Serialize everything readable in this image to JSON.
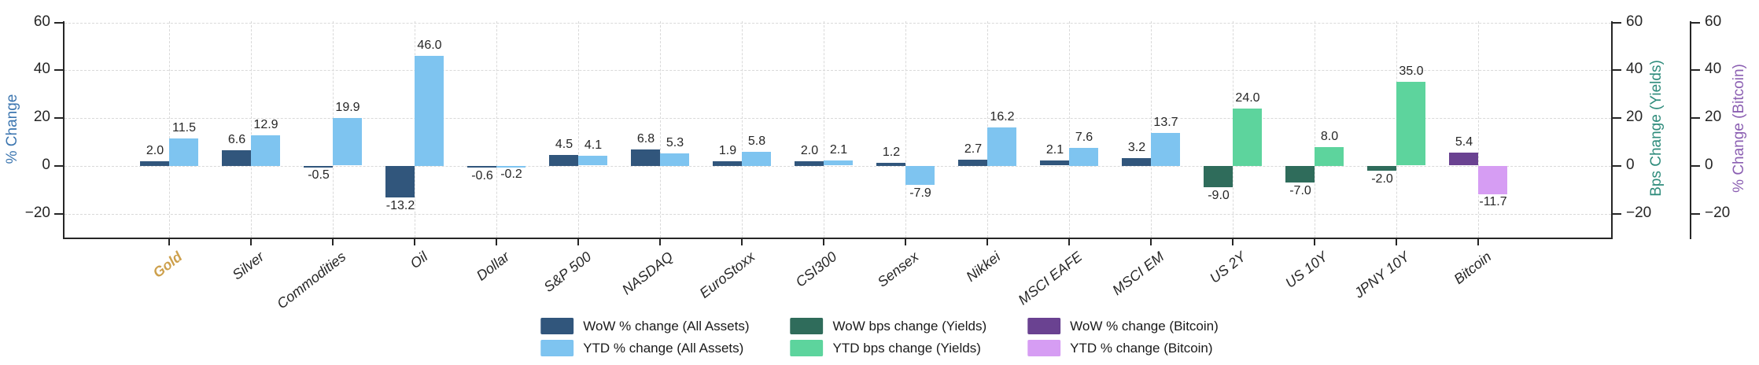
{
  "chart_data": {
    "type": "bar",
    "title": "",
    "categories": [
      "Gold",
      "Silver",
      "Commodities",
      "Oil",
      "Dollar",
      "S&P 500",
      "NASDAQ",
      "EuroStoxx",
      "CSI300",
      "Sensex",
      "Nikkei",
      "MSCI EAFE",
      "MSCI EM",
      "US 2Y",
      "US 10Y",
      "JPNY 10Y",
      "Bitcoin"
    ],
    "series": [
      {
        "name": "WoW % change (All Assets)",
        "period": "wow",
        "group": "all_assets",
        "color": "#31567c",
        "values": [
          2.0,
          6.6,
          -0.5,
          -13.2,
          -0.6,
          4.5,
          6.8,
          1.9,
          2.0,
          1.2,
          2.7,
          2.1,
          3.2,
          null,
          null,
          null,
          null
        ]
      },
      {
        "name": "YTD % change (All Assets)",
        "period": "ytd",
        "group": "all_assets",
        "color": "#7ec4f0",
        "values": [
          11.5,
          12.9,
          19.9,
          46.0,
          -0.2,
          4.1,
          5.3,
          5.8,
          2.1,
          -7.9,
          16.2,
          7.6,
          13.7,
          null,
          null,
          null,
          null
        ]
      },
      {
        "name": "WoW bps change (Yields)",
        "period": "wow",
        "group": "yields",
        "color": "#2f6c5b",
        "values": [
          null,
          null,
          null,
          null,
          null,
          null,
          null,
          null,
          null,
          null,
          null,
          null,
          null,
          -9.0,
          -7.0,
          -2.0,
          null
        ]
      },
      {
        "name": "YTD bps change (Yields)",
        "period": "ytd",
        "group": "yields",
        "color": "#5dd49d",
        "values": [
          null,
          null,
          null,
          null,
          null,
          null,
          null,
          null,
          null,
          null,
          null,
          null,
          null,
          24.0,
          8.0,
          35.0,
          null
        ]
      },
      {
        "name": "WoW % change (Bitcoin)",
        "period": "wow",
        "group": "bitcoin",
        "color": "#6a4291",
        "values": [
          null,
          null,
          null,
          null,
          null,
          null,
          null,
          null,
          null,
          null,
          null,
          null,
          null,
          null,
          null,
          null,
          5.4
        ]
      },
      {
        "name": "YTD % change (Bitcoin)",
        "period": "ytd",
        "group": "bitcoin",
        "color": "#d69df3",
        "values": [
          null,
          null,
          null,
          null,
          null,
          null,
          null,
          null,
          null,
          null,
          null,
          null,
          null,
          null,
          null,
          null,
          -11.7
        ]
      }
    ],
    "yticks": [
      60,
      40,
      20,
      0,
      -20
    ],
    "ylim": [
      -30,
      60.5
    ],
    "grid": true,
    "grid_color": "#d9d9d9",
    "legend_position": "bottom"
  },
  "axes": {
    "spine_color": "#262626",
    "text_color": "#262626",
    "left": {
      "label": "% Change",
      "color": "#3c76b0",
      "ticks": [
        60,
        40,
        20,
        0,
        -20
      ]
    },
    "yields": {
      "label": "Bps Change (Yields)",
      "color": "#2f8c7c",
      "ticks": [
        60,
        40,
        20,
        0,
        -20
      ]
    },
    "bitcoin": {
      "label": "% Change (Bitcoin)",
      "color": "#8b5fb2",
      "ticks": [
        60,
        40,
        20,
        0,
        -20
      ]
    }
  },
  "x_axis": {
    "highlight": {
      "category": "Gold",
      "color": "#cda04c"
    }
  }
}
